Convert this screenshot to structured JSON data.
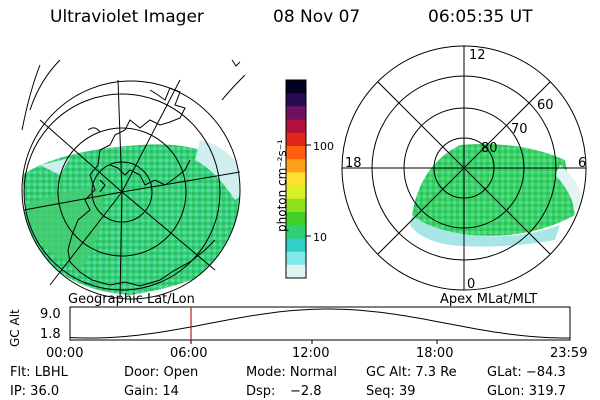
{
  "header": {
    "instrument": "Ultraviolet Imager",
    "date": "08 Nov 07",
    "time": "06:05:35 UT"
  },
  "colorbar": {
    "unit_label": "photon cm⁻²s⁻¹",
    "ticks": [
      {
        "value": 100,
        "label": "100"
      },
      {
        "value": 10,
        "label": "10"
      }
    ],
    "colors": [
      "#000020",
      "#2a0a55",
      "#701060",
      "#b0103a",
      "#e0281a",
      "#ff6010",
      "#ffa018",
      "#ffe030",
      "#d8f028",
      "#90e020",
      "#40d028",
      "#30d070",
      "#30d0c8",
      "#80e8e8",
      "#e0f4f4"
    ]
  },
  "left_map": {
    "caption": "Geographic Lat/Lon"
  },
  "right_map": {
    "caption": "Apex MLat/MLT",
    "mlt_labels": {
      "top": "12",
      "left": "18",
      "right": "6",
      "bottom": "0"
    },
    "lat_labels": [
      "60",
      "70",
      "80"
    ]
  },
  "altitude_plot": {
    "ylabel": "GC Alt",
    "yticks": [
      "9.0",
      "1.8"
    ],
    "xticks": [
      "00:00",
      "06:00",
      "12:00",
      "18:00",
      "23:59"
    ],
    "marker_time": "06:05:35"
  },
  "info": {
    "flt": "Flt: LBHL",
    "door": "Door: Open",
    "mode": "Mode: Normal",
    "gcalt": "GC Alt: 7.3 Re",
    "glat": "GLat: −84.3",
    "ip": "IP: 36.0",
    "gain": "Gain: 14",
    "dsp_label": "Dsp:",
    "dsp_value": "−2.8",
    "seq": "Seq: 39",
    "glon": "GLon: 319.7"
  }
}
